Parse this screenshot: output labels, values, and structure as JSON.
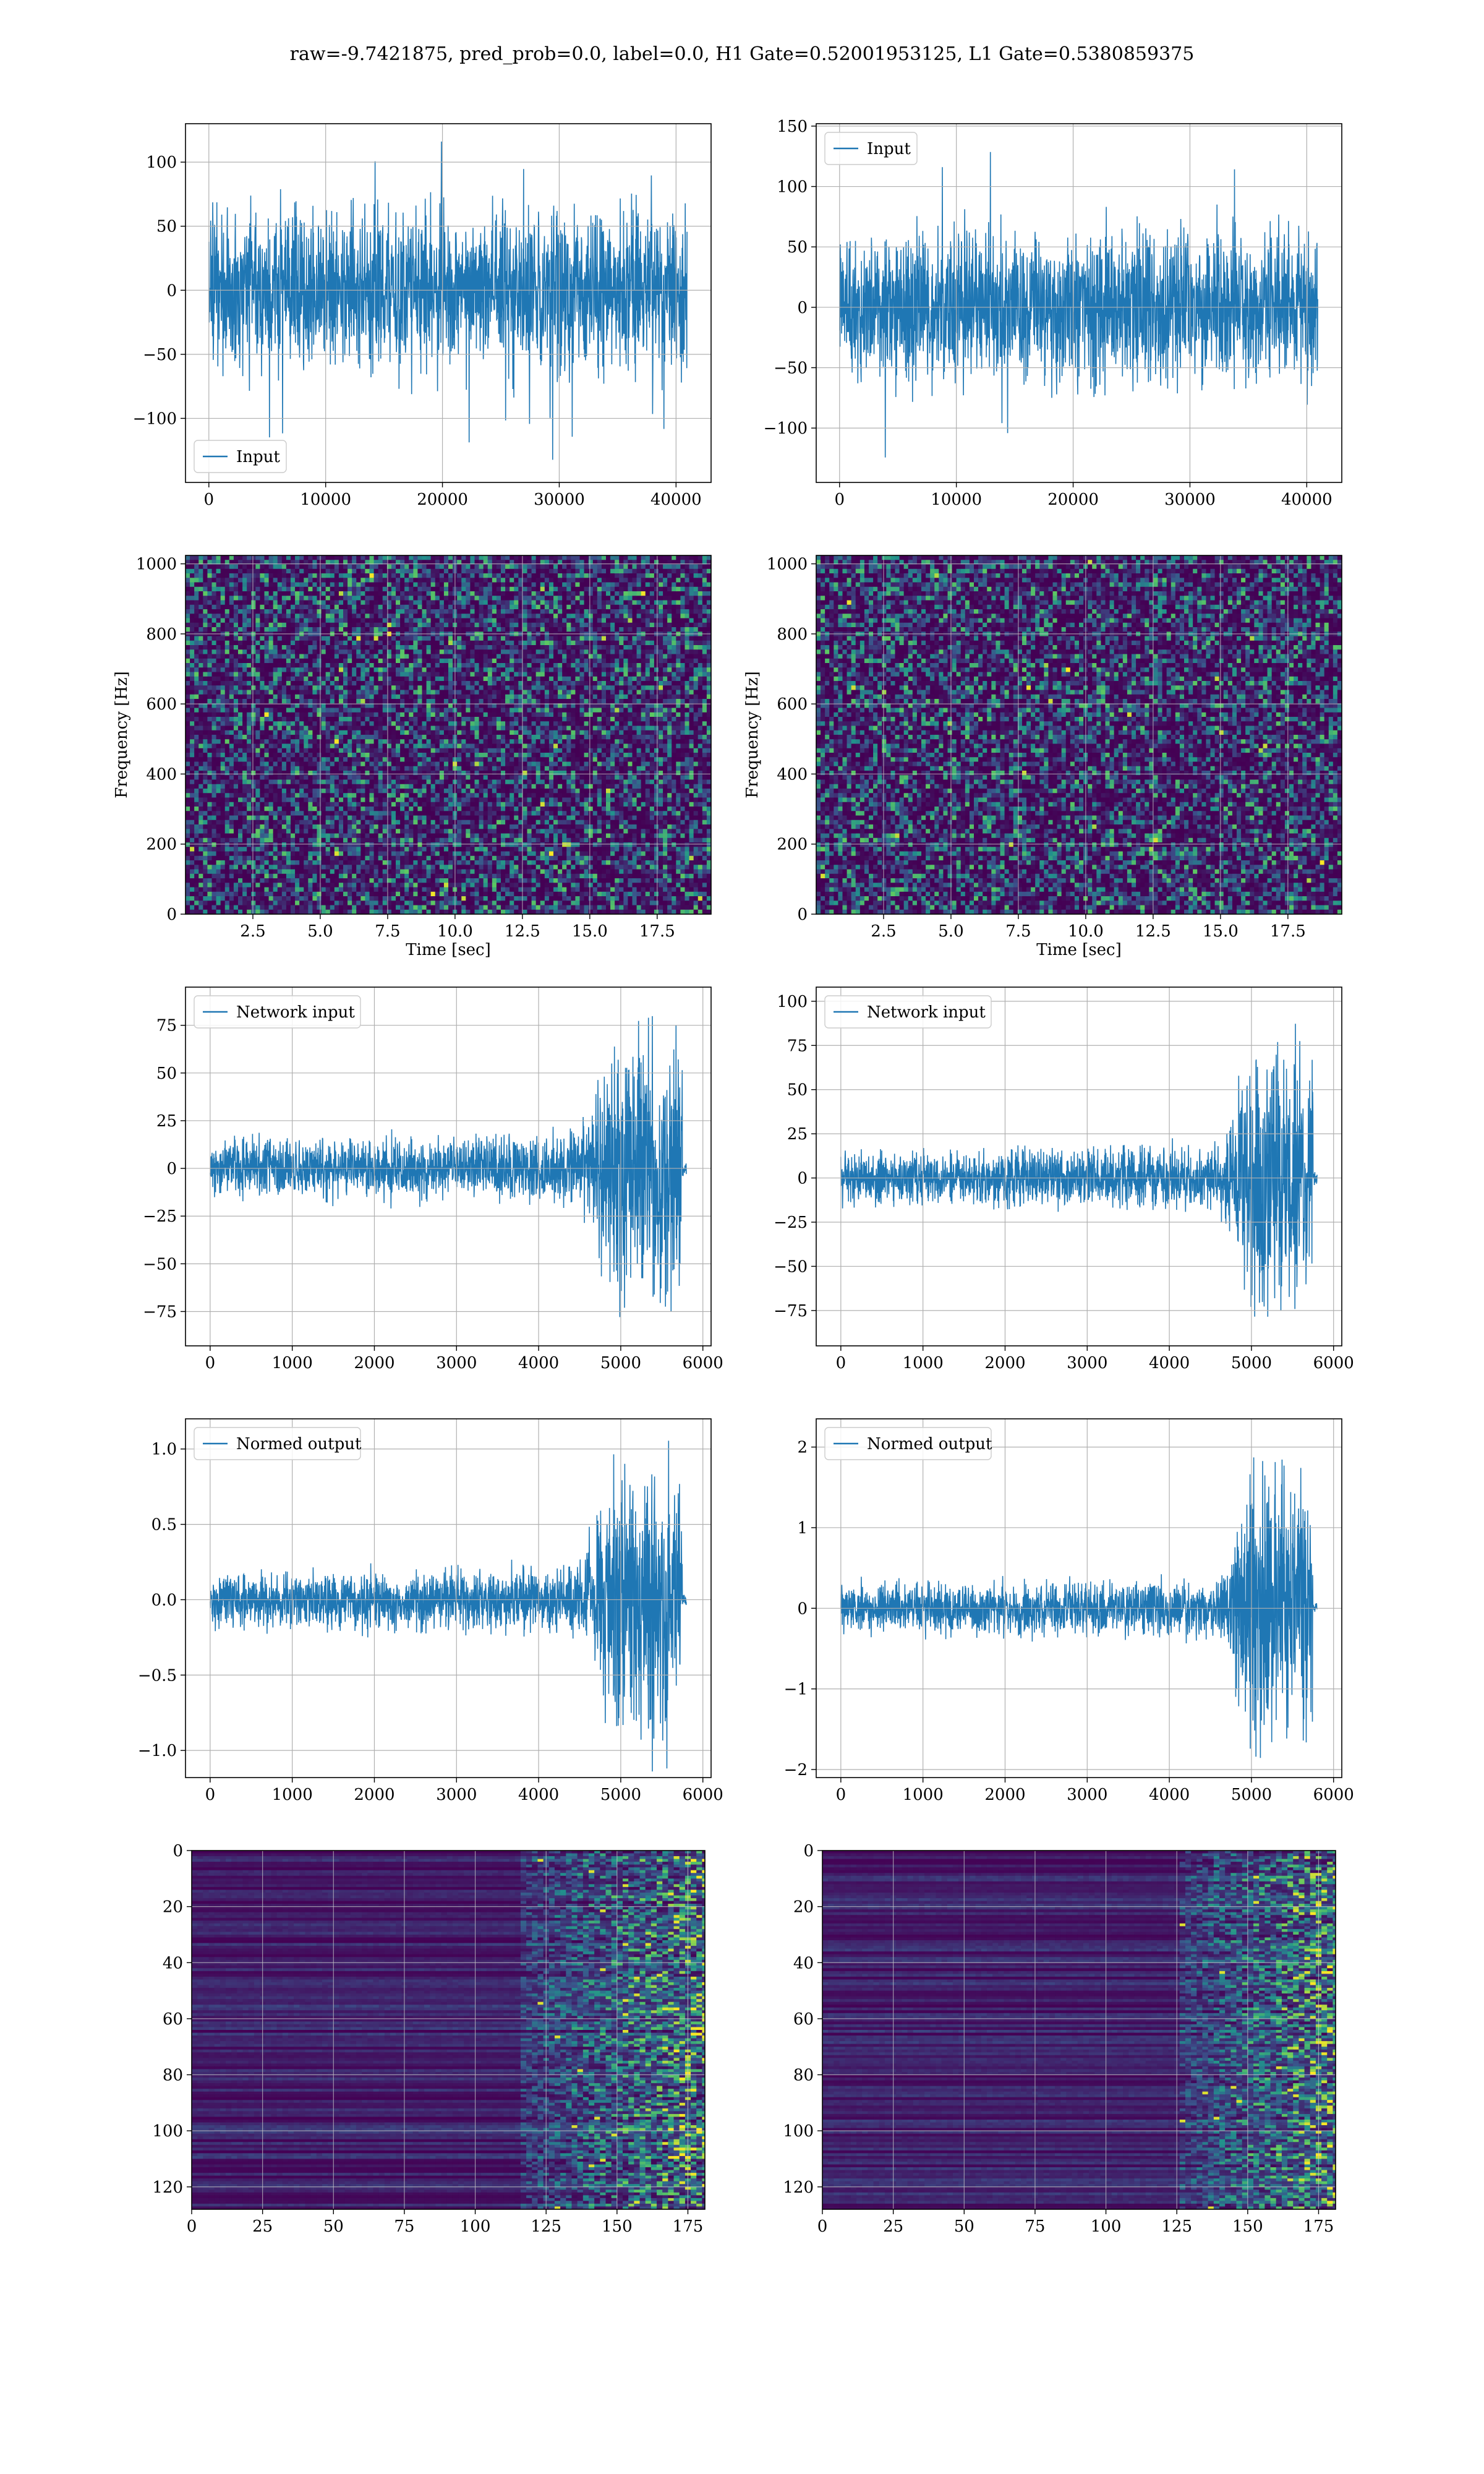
{
  "figure": {
    "title": "raw=-9.7421875, pred_prob=0.0, label=0.0, H1 Gate=0.52001953125, L1 Gate=0.5380859375"
  },
  "colors": {
    "line": "#1f77b4",
    "grid": "#b0b0b0",
    "viridis_low": "#440154",
    "viridis_mid": "#21918c",
    "viridis_high": "#fde725"
  },
  "chart_data": [
    {
      "id": "h1-input",
      "type": "line",
      "ylabel": "",
      "xlabel": "",
      "legend": {
        "label": "Input",
        "loc": "lower-left"
      },
      "xlim": [
        -2000,
        43000
      ],
      "ylim": [
        -150,
        130
      ],
      "xticks": [
        0,
        10000,
        20000,
        30000,
        40000
      ],
      "yticks": [
        -100,
        -50,
        0,
        50,
        100
      ],
      "n_samples": 40960,
      "envelope": {
        "baseline_amp": 75,
        "peak_max": 122,
        "peak_min": -135
      },
      "grid": true
    },
    {
      "id": "l1-input",
      "type": "line",
      "ylabel": "",
      "xlabel": "",
      "legend": {
        "label": "Input",
        "loc": "upper-left"
      },
      "xlim": [
        -2000,
        43000
      ],
      "ylim": [
        -145,
        152
      ],
      "xticks": [
        0,
        10000,
        20000,
        30000,
        40000
      ],
      "yticks": [
        -100,
        -50,
        0,
        50,
        100,
        150
      ],
      "n_samples": 40960,
      "envelope": {
        "baseline_amp": 75,
        "peak_max": 138,
        "peak_min": -128
      },
      "grid": true
    },
    {
      "id": "h1-spectrogram",
      "type": "heatmap",
      "xlabel": "Time [sec]",
      "ylabel": "Frequency [Hz]",
      "xlim": [
        0,
        19.5
      ],
      "ylim": [
        0,
        1024
      ],
      "xticks": [
        2.5,
        5.0,
        7.5,
        10.0,
        12.5,
        15.0,
        17.5
      ],
      "yticks": [
        0,
        200,
        400,
        600,
        800,
        1000
      ],
      "colormap": "viridis",
      "grid": true
    },
    {
      "id": "l1-spectrogram",
      "type": "heatmap",
      "xlabel": "Time [sec]",
      "ylabel": "Frequency [Hz]",
      "xlim": [
        0,
        19.5
      ],
      "ylim": [
        0,
        1024
      ],
      "xticks": [
        2.5,
        5.0,
        7.5,
        10.0,
        12.5,
        15.0,
        17.5
      ],
      "yticks": [
        0,
        200,
        400,
        600,
        800,
        1000
      ],
      "colormap": "viridis",
      "grid": true
    },
    {
      "id": "h1-network-input",
      "type": "line",
      "xlabel": "",
      "ylabel": "",
      "legend": {
        "label": "Network input",
        "loc": "upper-left"
      },
      "xlim": [
        -300,
        6100
      ],
      "ylim": [
        -93,
        95
      ],
      "xticks": [
        0,
        1000,
        2000,
        3000,
        4000,
        5000,
        6000
      ],
      "yticks": [
        -75,
        -50,
        -25,
        0,
        25,
        50,
        75
      ],
      "n_samples": 5800,
      "envelope": {
        "baseline_amp": 20,
        "burst_start": 4500,
        "burst_end": 5750,
        "burst_amp": 80
      },
      "grid": true
    },
    {
      "id": "l1-network-input",
      "type": "line",
      "xlabel": "",
      "ylabel": "",
      "legend": {
        "label": "Network input",
        "loc": "upper-left"
      },
      "xlim": [
        -300,
        6100
      ],
      "ylim": [
        -95,
        108
      ],
      "xticks": [
        0,
        1000,
        2000,
        3000,
        4000,
        5000,
        6000
      ],
      "yticks": [
        -75,
        -50,
        -25,
        0,
        25,
        50,
        75,
        100
      ],
      "n_samples": 5800,
      "envelope": {
        "baseline_amp": 20,
        "burst_start": 4600,
        "burst_end": 5750,
        "burst_amp": 85
      },
      "grid": true
    },
    {
      "id": "h1-normed-output",
      "type": "line",
      "xlabel": "",
      "ylabel": "",
      "legend": {
        "label": "Normed output",
        "loc": "upper-left"
      },
      "xlim": [
        -300,
        6100
      ],
      "ylim": [
        -1.18,
        1.2
      ],
      "xticks": [
        0,
        1000,
        2000,
        3000,
        4000,
        5000,
        6000
      ],
      "yticks": [
        -1.0,
        -0.5,
        0.0,
        0.5,
        1.0
      ],
      "n_samples": 5800,
      "envelope": {
        "baseline_amp": 0.25,
        "burst_start": 4500,
        "burst_end": 5750,
        "burst_amp": 1.05
      },
      "grid": true
    },
    {
      "id": "l1-normed-output",
      "type": "line",
      "xlabel": "",
      "ylabel": "",
      "legend": {
        "label": "Normed output",
        "loc": "upper-left"
      },
      "xlim": [
        -300,
        6100
      ],
      "ylim": [
        -2.1,
        2.35
      ],
      "xticks": [
        0,
        1000,
        2000,
        3000,
        4000,
        5000,
        6000
      ],
      "yticks": [
        -2,
        -1,
        0,
        1,
        2
      ],
      "n_samples": 5800,
      "envelope": {
        "baseline_amp": 0.4,
        "burst_start": 4600,
        "burst_end": 5750,
        "burst_amp": 1.9
      },
      "grid": true
    },
    {
      "id": "h1-feature-map",
      "type": "heatmap",
      "xlabel": "",
      "ylabel": "",
      "xlim": [
        0,
        181
      ],
      "ylim": [
        128,
        0
      ],
      "xticks": [
        0,
        25,
        50,
        75,
        100,
        125,
        150,
        175
      ],
      "yticks": [
        0,
        20,
        40,
        60,
        80,
        100,
        120
      ],
      "colormap": "viridis",
      "grid": true
    },
    {
      "id": "l1-feature-map",
      "type": "heatmap",
      "xlabel": "",
      "ylabel": "",
      "xlim": [
        0,
        181
      ],
      "ylim": [
        128,
        0
      ],
      "xticks": [
        0,
        25,
        50,
        75,
        100,
        125,
        150,
        175
      ],
      "yticks": [
        0,
        20,
        40,
        60,
        80,
        100,
        120
      ],
      "colormap": "viridis",
      "grid": true
    }
  ]
}
